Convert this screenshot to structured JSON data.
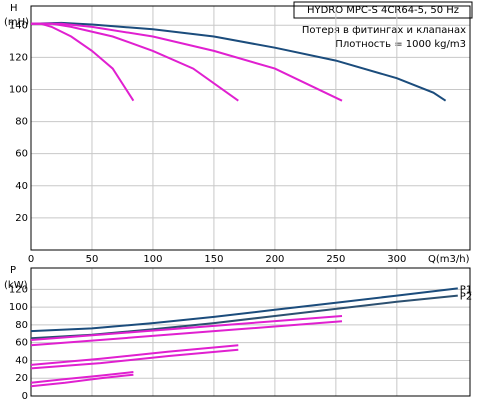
{
  "chart_data": [
    {
      "type": "line",
      "title": "HYDRO MPC-S 4CR64-5, 50 Hz",
      "subtitle": "Потеря в фитингах и клапанах",
      "annotation": "Плотность = 1000 kg/m3",
      "y_label": "H",
      "y_unit": "(mH)",
      "x_label": "Q(m3/h)",
      "grid": true,
      "xlim": [
        0,
        360
      ],
      "xticks": [
        0,
        50,
        100,
        150,
        200,
        250,
        300
      ],
      "ylim": [
        0,
        152
      ],
      "yticks": [
        20,
        40,
        60,
        80,
        100,
        120,
        140
      ],
      "series": [
        {
          "color": "#1b4c7c",
          "x": [
            0,
            25,
            50,
            100,
            150,
            200,
            250,
            300,
            330,
            340
          ],
          "values": [
            141,
            141.5,
            140.5,
            137.5,
            133,
            126,
            118,
            107,
            98,
            93
          ]
        },
        {
          "color": "#e020d0",
          "x": [
            0,
            25,
            50,
            100,
            150,
            200,
            255
          ],
          "values": [
            141,
            141,
            139,
            133,
            124,
            113,
            93
          ]
        },
        {
          "color": "#e020d0",
          "x": [
            0,
            17,
            33,
            67,
            100,
            133,
            170
          ],
          "values": [
            141,
            141,
            139,
            133,
            124,
            113,
            93
          ]
        },
        {
          "color": "#e020d0",
          "x": [
            0,
            8,
            17,
            33,
            50,
            67,
            84
          ],
          "values": [
            141,
            141,
            139,
            133,
            124,
            113,
            93
          ]
        }
      ]
    },
    {
      "type": "line",
      "y_label": "P",
      "y_unit": "(kW)",
      "grid": true,
      "xlim": [
        0,
        360
      ],
      "ylim": [
        0,
        144
      ],
      "yticks": [
        0,
        20,
        40,
        60,
        80,
        100,
        120
      ],
      "series": [
        {
          "name": "P1",
          "color": "#1b4c7c",
          "x": [
            0,
            50,
            100,
            150,
            200,
            250,
            300,
            350
          ],
          "values": [
            73,
            76,
            82,
            89,
            97,
            105,
            113,
            121
          ]
        },
        {
          "name": "P2",
          "color": "#2c5070",
          "x": [
            0,
            50,
            100,
            150,
            200,
            250,
            300,
            350
          ],
          "values": [
            65,
            69,
            75,
            82,
            90,
            98,
            106,
            113
          ]
        },
        {
          "color": "#e020d0",
          "x": [
            0,
            85,
            170,
            255
          ],
          "values": [
            63,
            72,
            81,
            90
          ]
        },
        {
          "color": "#e020d0",
          "x": [
            0,
            85,
            170,
            255
          ],
          "values": [
            57,
            66,
            75,
            84
          ]
        },
        {
          "color": "#e020d0",
          "x": [
            0,
            57,
            113,
            170
          ],
          "values": [
            35,
            42,
            50,
            57
          ]
        },
        {
          "color": "#e020d0",
          "x": [
            0,
            57,
            113,
            170
          ],
          "values": [
            31,
            37,
            45,
            52
          ]
        },
        {
          "color": "#e020d0",
          "x": [
            0,
            28,
            57,
            84
          ],
          "values": [
            15,
            19,
            23,
            27
          ]
        },
        {
          "color": "#e020d0",
          "x": [
            0,
            28,
            57,
            84
          ],
          "values": [
            11,
            15,
            20,
            24
          ]
        }
      ]
    }
  ]
}
